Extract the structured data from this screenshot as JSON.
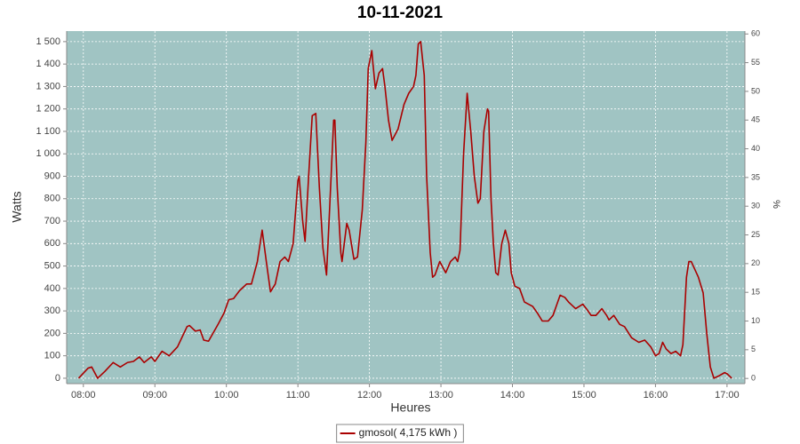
{
  "chart_data": {
    "type": "line",
    "title": "10-11-2021",
    "x_label": "Heures",
    "y_label": "Watts",
    "y2_label": "%",
    "x": [
      "07:56",
      "08:04",
      "08:07",
      "08:12",
      "08:18",
      "08:25",
      "08:31",
      "08:37",
      "08:42",
      "08:47",
      "08:51",
      "08:57",
      "09:00",
      "09:06",
      "09:12",
      "09:19",
      "09:27",
      "09:29",
      "09:34",
      "09:38",
      "09:41",
      "09:45",
      "09:53",
      "09:58",
      "10:02",
      "10:06",
      "10:11",
      "10:17",
      "10:21",
      "10:26",
      "10:30",
      "10:34",
      "10:37",
      "10:41",
      "10:45",
      "10:49",
      "10:52",
      "10:56",
      "11:00",
      "11:01",
      "11:04",
      "11:06",
      "11:09",
      "11:12",
      "11:15",
      "11:18",
      "11:21",
      "11:24",
      "11:27",
      "11:30",
      "11:31",
      "11:33",
      "11:36",
      "11:37",
      "11:41",
      "11:43",
      "11:47",
      "11:50",
      "11:54",
      "11:57",
      "11:59",
      "12:02",
      "12:03",
      "12:05",
      "12:08",
      "12:11",
      "12:13",
      "12:16",
      "12:19",
      "12:24",
      "12:29",
      "12:33",
      "12:37",
      "12:39",
      "12:41",
      "12:43",
      "12:46",
      "12:48",
      "12:51",
      "12:53",
      "12:55",
      "12:59",
      "13:01",
      "13:04",
      "13:08",
      "13:12",
      "13:14",
      "13:16",
      "13:19",
      "13:22",
      "13:25",
      "13:28",
      "13:31",
      "13:33",
      "13:36",
      "13:39",
      "13:40",
      "13:42",
      "13:44",
      "13:46",
      "13:48",
      "13:51",
      "13:54",
      "13:57",
      "13:59",
      "14:02",
      "14:06",
      "14:10",
      "14:17",
      "14:21",
      "14:25",
      "14:30",
      "14:34",
      "14:38",
      "14:40",
      "14:44",
      "14:47",
      "14:53",
      "14:59",
      "15:02",
      "15:06",
      "15:10",
      "15:15",
      "15:19",
      "15:21",
      "15:25",
      "15:30",
      "15:34",
      "15:40",
      "15:46",
      "15:51",
      "15:56",
      "16:00",
      "16:03",
      "16:06",
      "16:09",
      "16:13",
      "16:17",
      "16:21",
      "16:23",
      "16:26",
      "16:28",
      "16:30",
      "16:36",
      "16:40",
      "16:43",
      "16:46",
      "16:49",
      "16:53",
      "16:58",
      "17:00",
      "17:04"
    ],
    "series": [
      {
        "name": "gmosol( 4,175 kWh )",
        "color": "#aa0000",
        "values": [
          0,
          45,
          50,
          0,
          30,
          70,
          50,
          70,
          75,
          95,
          70,
          95,
          75,
          120,
          100,
          140,
          230,
          235,
          210,
          215,
          170,
          165,
          240,
          290,
          350,
          355,
          390,
          420,
          420,
          520,
          660,
          500,
          385,
          420,
          520,
          540,
          520,
          600,
          880,
          900,
          700,
          610,
          900,
          1170,
          1180,
          850,
          580,
          460,
          800,
          1150,
          1150,
          850,
          560,
          520,
          690,
          660,
          530,
          540,
          750,
          1050,
          1380,
          1460,
          1400,
          1290,
          1360,
          1380,
          1300,
          1150,
          1060,
          1110,
          1220,
          1270,
          1300,
          1350,
          1490,
          1500,
          1350,
          900,
          560,
          450,
          460,
          520,
          500,
          470,
          520,
          540,
          520,
          570,
          1000,
          1270,
          1100,
          900,
          780,
          800,
          1100,
          1200,
          1190,
          800,
          600,
          470,
          460,
          600,
          660,
          600,
          470,
          410,
          400,
          340,
          320,
          290,
          255,
          255,
          280,
          340,
          370,
          360,
          340,
          310,
          330,
          310,
          280,
          280,
          310,
          280,
          260,
          280,
          240,
          230,
          180,
          160,
          170,
          140,
          100,
          110,
          160,
          130,
          110,
          120,
          100,
          150,
          450,
          520,
          520,
          450,
          380,
          200,
          50,
          0,
          10,
          25,
          20,
          0
        ]
      }
    ],
    "xlim": [
      "07:46",
      "17:15"
    ],
    "xticks": [
      "08:00",
      "09:00",
      "10:00",
      "11:00",
      "12:00",
      "13:00",
      "14:00",
      "15:00",
      "16:00",
      "17:00"
    ],
    "ylim": [
      -24,
      1547
    ],
    "yticks": [
      0,
      100,
      200,
      300,
      400,
      500,
      600,
      700,
      800,
      900,
      {
        "value": 1000,
        "label": "1 000"
      },
      {
        "value": 1100,
        "label": "1 100"
      },
      {
        "value": 1200,
        "label": "1 200"
      },
      {
        "value": 1300,
        "label": "1 300"
      },
      {
        "value": 1400,
        "label": "1 400"
      },
      {
        "value": 1500,
        "label": "1 500"
      }
    ],
    "y2lim": [
      -0.9,
      60.5
    ],
    "y2ticks": [
      0,
      5,
      10,
      15,
      20,
      25,
      30,
      35,
      40,
      45,
      50,
      55,
      60
    ],
    "grid": true,
    "plot_background": "#a0c4c3",
    "legend": "bottom"
  }
}
